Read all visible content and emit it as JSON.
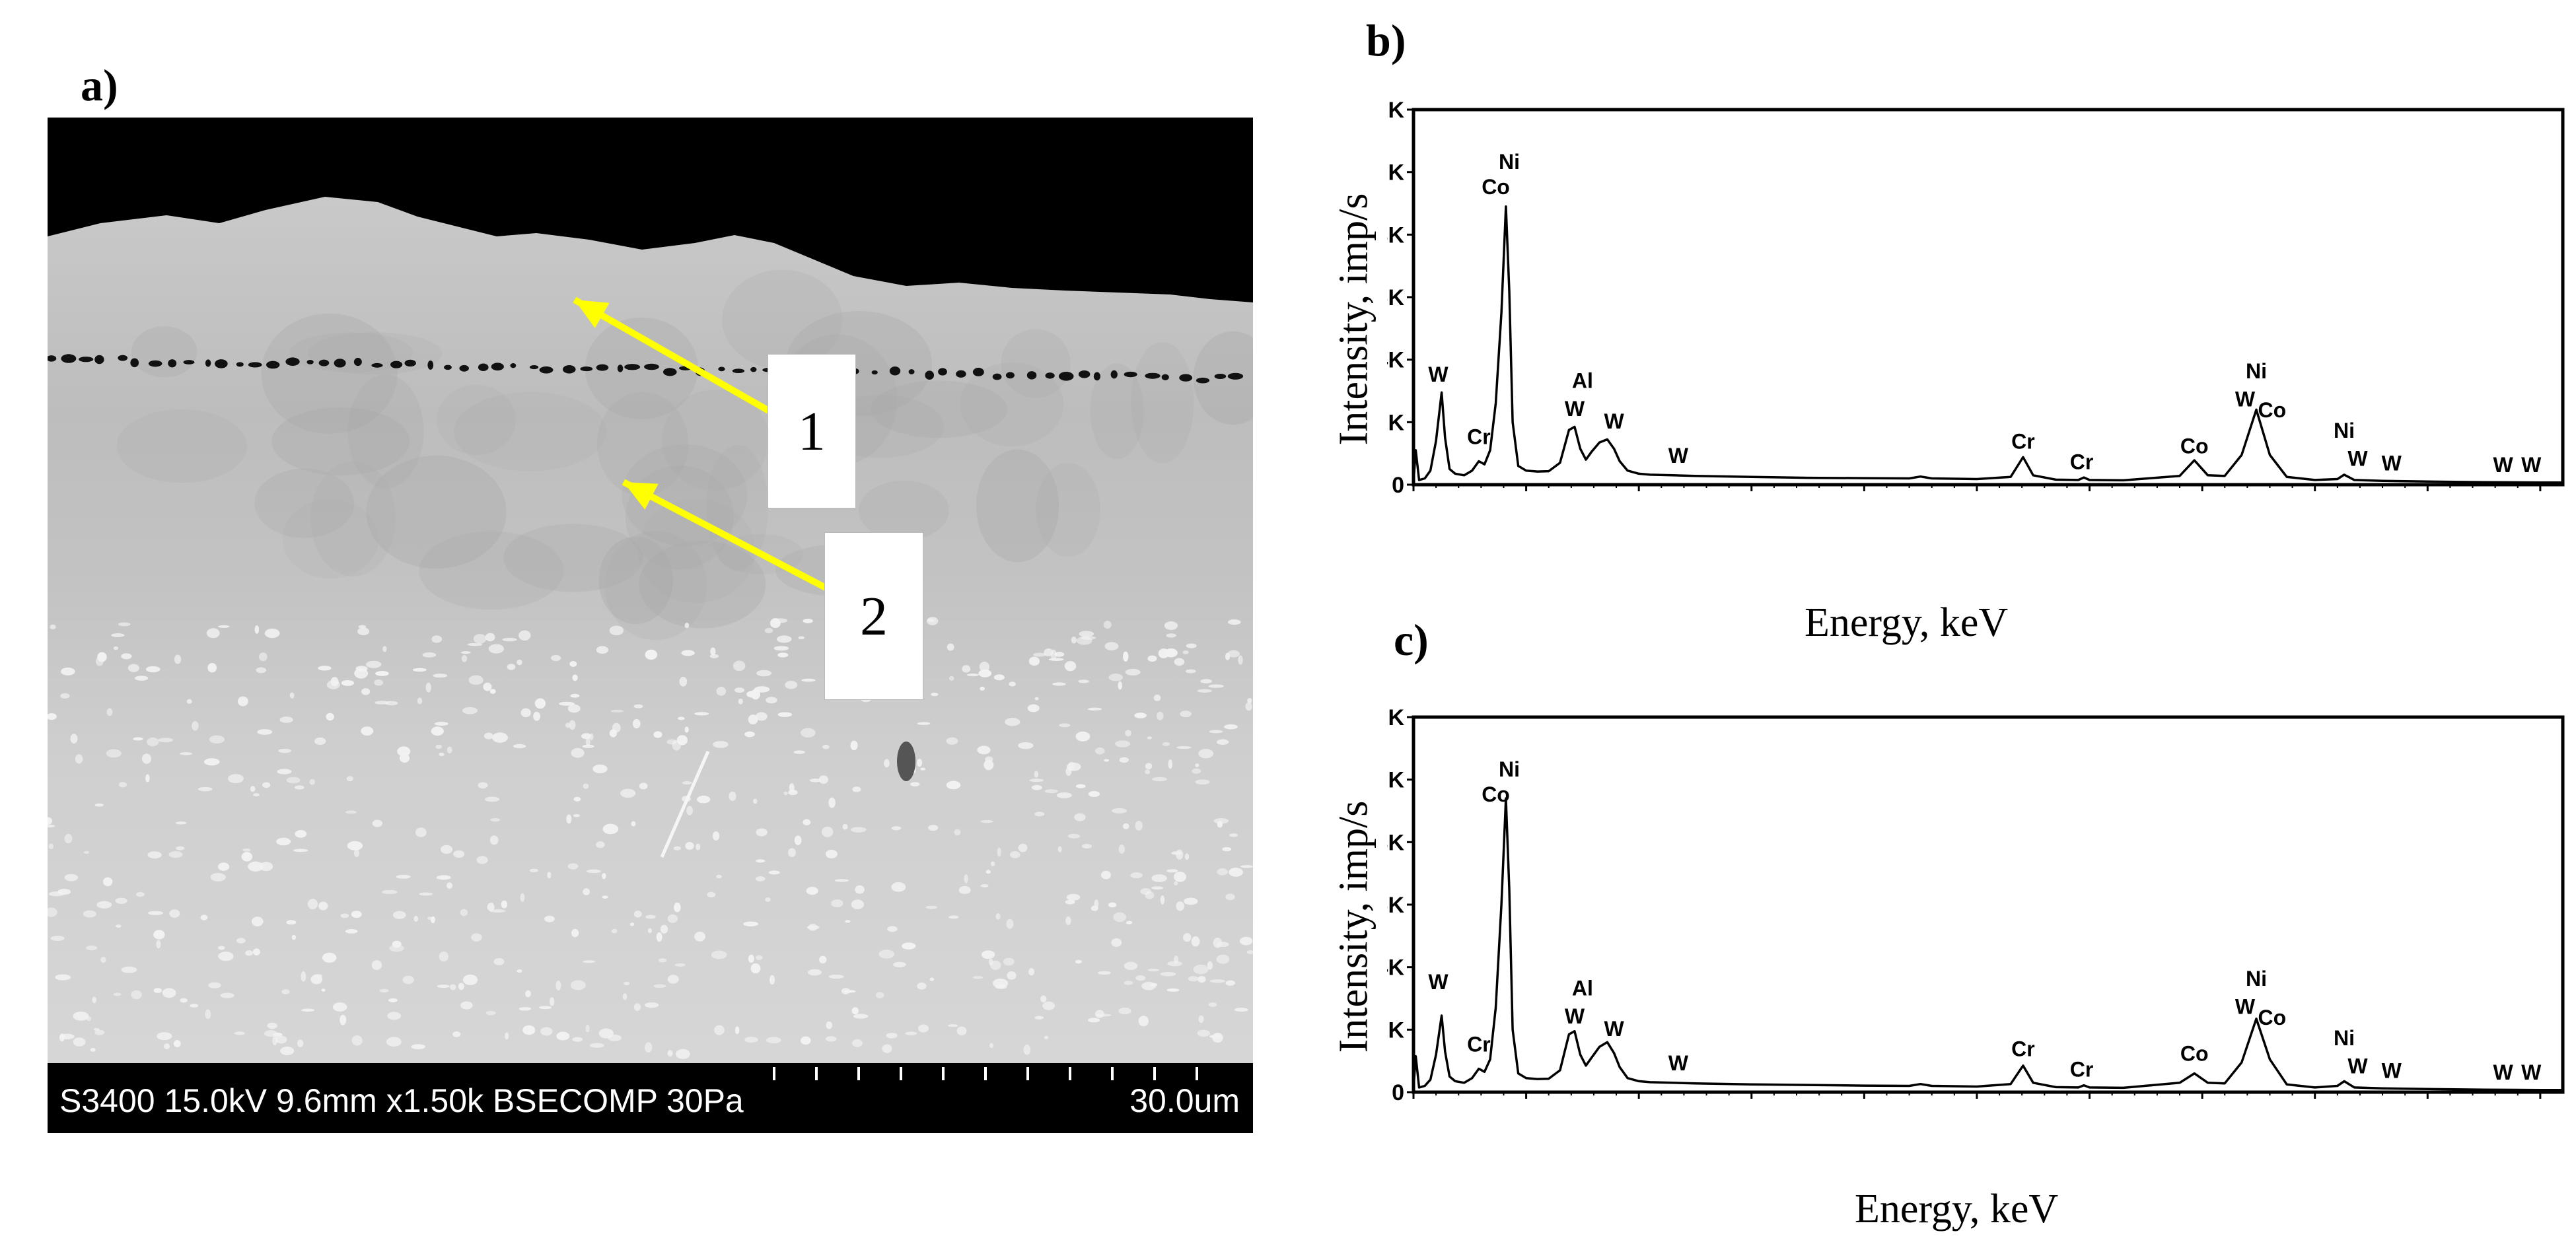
{
  "panels": {
    "a": "a)",
    "b": "b)",
    "c": "c)"
  },
  "micrograph": {
    "info_text": "S3400 15.0kV 9.6mm x1.50k BSECOMP 30Pa",
    "scale_text": "30.0um",
    "markers": [
      "1",
      "2"
    ],
    "arrow_color": "#ffff00"
  },
  "chart_data": [
    {
      "type": "line",
      "panel": "b)",
      "xlabel": "Energy, keV",
      "ylabel": "Intensity, imp/s",
      "xlim": [
        0,
        10.2
      ],
      "ylim": [
        0,
        12000
      ],
      "x_ticks": [
        "0",
        "1",
        "2",
        "3",
        "4",
        "5",
        "6",
        "7",
        "8",
        "9",
        "10"
      ],
      "y_ticks": [
        "0",
        "2K",
        "4K",
        "6K",
        "8K",
        "10K",
        "12K"
      ],
      "grid": false,
      "x": [
        0,
        0.02,
        0.05,
        0.1,
        0.15,
        0.2,
        0.25,
        0.28,
        0.32,
        0.37,
        0.45,
        0.52,
        0.58,
        0.63,
        0.68,
        0.73,
        0.78,
        0.82,
        0.85,
        0.88,
        0.93,
        1.0,
        1.1,
        1.2,
        1.3,
        1.38,
        1.43,
        1.48,
        1.53,
        1.58,
        1.65,
        1.72,
        1.78,
        1.83,
        1.9,
        2.0,
        2.1,
        2.3,
        2.5,
        3.0,
        3.5,
        4.0,
        4.4,
        4.5,
        4.6,
        5.0,
        5.3,
        5.41,
        5.5,
        5.7,
        5.9,
        5.95,
        6.0,
        6.3,
        6.8,
        6.93,
        7.05,
        7.2,
        7.35,
        7.48,
        7.6,
        7.75,
        8.0,
        8.2,
        8.26,
        8.35,
        8.6,
        9.0,
        9.5,
        10.0,
        10.2
      ],
      "y": [
        100,
        1100,
        150,
        200,
        450,
        1400,
        2950,
        1500,
        500,
        350,
        300,
        450,
        750,
        650,
        1100,
        2600,
        5500,
        8900,
        6200,
        2000,
        600,
        450,
        420,
        430,
        700,
        1750,
        1850,
        1150,
        800,
        1050,
        1350,
        1450,
        1150,
        750,
        450,
        350,
        320,
        300,
        280,
        250,
        220,
        210,
        200,
        260,
        200,
        180,
        250,
        880,
        300,
        160,
        150,
        230,
        150,
        140,
        280,
        780,
        300,
        280,
        950,
        2400,
        950,
        250,
        150,
        180,
        320,
        150,
        120,
        100,
        80,
        70,
        70
      ],
      "annotations": [
        {
          "label": "Ni",
          "x": 0.85,
          "y": 10100
        },
        {
          "label": "Co",
          "x": 0.73,
          "y": 9300
        },
        {
          "label": "W",
          "x": 0.22,
          "y": 3300
        },
        {
          "label": "Cr",
          "x": 0.58,
          "y": 1300
        },
        {
          "label": "Al",
          "x": 1.5,
          "y": 3100
        },
        {
          "label": "W",
          "x": 1.43,
          "y": 2200
        },
        {
          "label": "W",
          "x": 1.78,
          "y": 1800
        },
        {
          "label": "W",
          "x": 2.35,
          "y": 700
        },
        {
          "label": "Cr",
          "x": 5.41,
          "y": 1150
        },
        {
          "label": "Cr",
          "x": 5.93,
          "y": 500
        },
        {
          "label": "Co",
          "x": 6.93,
          "y": 1000
        },
        {
          "label": "Ni",
          "x": 7.48,
          "y": 3400
        },
        {
          "label": "W",
          "x": 7.38,
          "y": 2500
        },
        {
          "label": "Co",
          "x": 7.62,
          "y": 2150
        },
        {
          "label": "Ni",
          "x": 8.26,
          "y": 1500
        },
        {
          "label": "W",
          "x": 8.38,
          "y": 600
        },
        {
          "label": "W",
          "x": 8.68,
          "y": 450
        },
        {
          "label": "W",
          "x": 9.67,
          "y": 400
        },
        {
          "label": "W",
          "x": 9.92,
          "y": 400
        }
      ]
    },
    {
      "type": "line",
      "panel": "c)",
      "xlabel": "Energy, keV",
      "ylabel": "Intensity, imp/s",
      "xlim": [
        0,
        10.2
      ],
      "ylim": [
        0,
        12000
      ],
      "x_ticks": [
        "0",
        "1",
        "2",
        "3",
        "4",
        "5",
        "6",
        "7",
        "8",
        "9",
        "10"
      ],
      "y_ticks": [
        "0",
        "2K",
        "4K",
        "6K",
        "8K",
        "10K",
        "12K"
      ],
      "grid": false,
      "x": [
        0,
        0.02,
        0.05,
        0.1,
        0.15,
        0.2,
        0.25,
        0.28,
        0.32,
        0.37,
        0.45,
        0.52,
        0.58,
        0.63,
        0.68,
        0.73,
        0.78,
        0.82,
        0.85,
        0.88,
        0.93,
        1.0,
        1.1,
        1.2,
        1.3,
        1.38,
        1.43,
        1.48,
        1.53,
        1.58,
        1.65,
        1.72,
        1.78,
        1.83,
        1.9,
        2.0,
        2.1,
        2.3,
        2.5,
        3.0,
        3.5,
        4.0,
        4.4,
        4.5,
        4.6,
        5.0,
        5.3,
        5.41,
        5.5,
        5.7,
        5.9,
        5.95,
        6.0,
        6.3,
        6.8,
        6.93,
        7.05,
        7.2,
        7.35,
        7.48,
        7.6,
        7.75,
        8.0,
        8.2,
        8.26,
        8.35,
        8.6,
        9.0,
        9.5,
        10.0,
        10.2
      ],
      "y": [
        150,
        1150,
        150,
        200,
        400,
        1200,
        2450,
        1300,
        500,
        350,
        300,
        450,
        750,
        650,
        1050,
        2700,
        6000,
        9400,
        6500,
        2000,
        600,
        450,
        420,
        430,
        700,
        1850,
        1950,
        1200,
        850,
        1100,
        1450,
        1600,
        1250,
        800,
        450,
        350,
        320,
        300,
        280,
        250,
        230,
        210,
        200,
        260,
        200,
        180,
        260,
        850,
        300,
        160,
        150,
        220,
        150,
        140,
        300,
        600,
        300,
        280,
        950,
        2350,
        1050,
        250,
        150,
        200,
        350,
        150,
        120,
        100,
        80,
        70,
        70
      ]
    }
  ]
}
